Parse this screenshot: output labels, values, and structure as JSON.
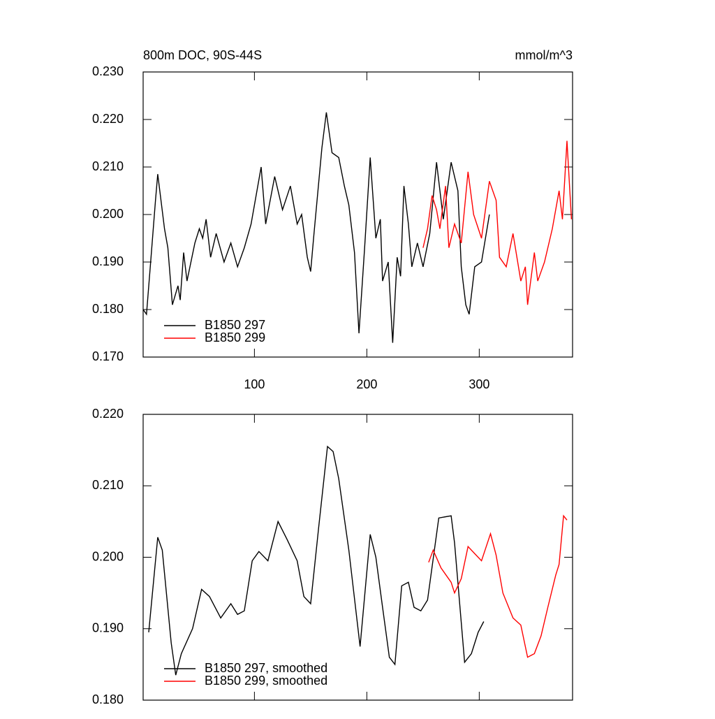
{
  "chart_data": [
    {
      "type": "line",
      "title": "800m DOC, 90S-44S",
      "subtitle": "mmol/m^3",
      "xlim": [
        1,
        383
      ],
      "xticks": [
        100,
        200,
        300
      ],
      "ylim": [
        0.17,
        0.23
      ],
      "yticks": [
        {
          "value": 0.17,
          "label": "0.170"
        },
        {
          "value": 0.18,
          "label": "0.180"
        },
        {
          "value": 0.19,
          "label": "0.190"
        },
        {
          "value": 0.2,
          "label": "0.200"
        },
        {
          "value": 0.21,
          "label": "0.210"
        },
        {
          "value": 0.22,
          "label": "0.220"
        },
        {
          "value": 0.23,
          "label": "0.230"
        }
      ],
      "legend": "lower left",
      "series": [
        {
          "name": "B1850 297",
          "color": "#000000",
          "x": [
            1,
            4,
            8,
            12,
            14,
            20,
            23,
            27,
            32,
            34,
            37,
            40,
            47,
            51,
            54,
            57,
            61,
            66,
            73,
            79,
            85,
            91,
            97,
            106,
            110,
            118,
            125,
            132,
            138,
            142,
            147,
            150,
            153,
            160,
            164,
            169,
            175,
            180,
            184,
            189,
            193,
            198,
            203,
            208,
            212,
            214,
            219,
            223,
            227,
            230,
            233,
            237,
            240,
            245,
            250,
            256,
            262,
            268,
            275,
            281,
            284,
            288,
            291,
            296,
            302,
            309
          ],
          "values": [
            0.18,
            0.179,
            0.191,
            0.203,
            0.2085,
            0.197,
            0.193,
            0.181,
            0.185,
            0.182,
            0.192,
            0.186,
            0.194,
            0.197,
            0.195,
            0.199,
            0.191,
            0.196,
            0.19,
            0.194,
            0.189,
            0.193,
            0.198,
            0.21,
            0.198,
            0.208,
            0.201,
            0.206,
            0.198,
            0.2,
            0.191,
            0.188,
            0.196,
            0.214,
            0.2215,
            0.213,
            0.212,
            0.206,
            0.202,
            0.192,
            0.175,
            0.193,
            0.212,
            0.195,
            0.199,
            0.186,
            0.19,
            0.173,
            0.191,
            0.187,
            0.206,
            0.198,
            0.189,
            0.194,
            0.189,
            0.196,
            0.211,
            0.199,
            0.211,
            0.205,
            0.189,
            0.181,
            0.179,
            0.189,
            0.19,
            0.2
          ]
        },
        {
          "name": "B1850 299",
          "color": "#ff0000",
          "x": [
            250,
            254,
            258,
            262,
            265,
            270,
            273,
            278,
            284,
            290,
            295,
            302,
            309,
            315,
            318,
            324,
            330,
            337,
            341,
            343,
            349,
            352,
            358,
            365,
            371,
            374,
            378,
            382
          ],
          "values": [
            0.193,
            0.197,
            0.204,
            0.201,
            0.197,
            0.206,
            0.193,
            0.198,
            0.194,
            0.209,
            0.2,
            0.195,
            0.207,
            0.203,
            0.191,
            0.189,
            0.196,
            0.186,
            0.189,
            0.181,
            0.192,
            0.186,
            0.19,
            0.197,
            0.205,
            0.199,
            0.2155,
            0.199
          ]
        }
      ]
    },
    {
      "type": "line",
      "xlim": [
        1,
        383
      ],
      "ylim": [
        0.18,
        0.22
      ],
      "yticks": [
        {
          "value": 0.18,
          "label": "0.180"
        },
        {
          "value": 0.19,
          "label": "0.190"
        },
        {
          "value": 0.2,
          "label": "0.200"
        },
        {
          "value": 0.21,
          "label": "0.210"
        },
        {
          "value": 0.22,
          "label": "0.220"
        }
      ],
      "legend": "lower left",
      "series": [
        {
          "name": "B1850 297, smoothed",
          "color": "#000000",
          "x": [
            6,
            14,
            18,
            26,
            30,
            35,
            45,
            53,
            60,
            70,
            79,
            85,
            91,
            98,
            104,
            112,
            121,
            129,
            138,
            144,
            150,
            157,
            165,
            170,
            175,
            184,
            194,
            203,
            208,
            214,
            220,
            225,
            231,
            237,
            242,
            248,
            254,
            264,
            275,
            278,
            287,
            293,
            299,
            304
          ],
          "values": [
            0.1895,
            0.2028,
            0.201,
            0.188,
            0.1835,
            0.1865,
            0.19,
            0.1955,
            0.1945,
            0.1915,
            0.1935,
            0.192,
            0.1925,
            0.1995,
            0.2008,
            0.1995,
            0.205,
            0.2025,
            0.1995,
            0.1945,
            0.1935,
            0.204,
            0.2155,
            0.2148,
            0.211,
            0.201,
            0.1875,
            0.2032,
            0.2,
            0.193,
            0.186,
            0.185,
            0.196,
            0.1965,
            0.193,
            0.1925,
            0.194,
            0.2055,
            0.2058,
            0.202,
            0.1853,
            0.1865,
            0.1895,
            0.191
          ]
        },
        {
          "name": "B1850 299, smoothed",
          "color": "#ff0000",
          "x": [
            255,
            259,
            266,
            275,
            278,
            284,
            290,
            296,
            302,
            310,
            315,
            321,
            330,
            337,
            343,
            349,
            355,
            361,
            368,
            371,
            375,
            378
          ],
          "values": [
            0.1993,
            0.201,
            0.1985,
            0.1965,
            0.195,
            0.197,
            0.2015,
            0.2005,
            0.1995,
            0.2033,
            0.2003,
            0.195,
            0.1915,
            0.1905,
            0.186,
            0.1865,
            0.189,
            0.193,
            0.1975,
            0.199,
            0.2058,
            0.2052
          ]
        }
      ]
    }
  ]
}
